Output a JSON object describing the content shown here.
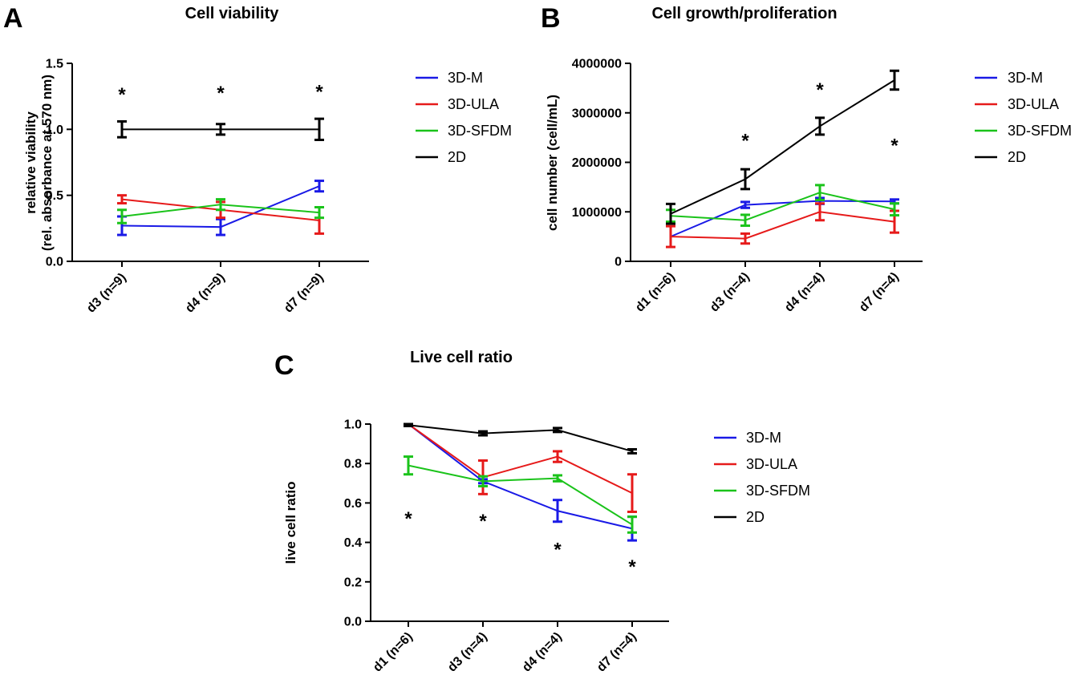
{
  "chart_data": [
    {
      "type": "line",
      "panel": "A",
      "title": "Cell viability",
      "xlabel": "",
      "ylabel": [
        "relative viability",
        "(rel. absorbance at 570 nm)"
      ],
      "categories": [
        "d3 (n=9)",
        "d4 (n=9)",
        "d7 (n=9)"
      ],
      "ylim": [
        0,
        1.5
      ],
      "yticks": [
        "0.0",
        "0.5",
        "1.0",
        "1.5"
      ],
      "ytick_values": [
        0,
        0.5,
        1.0,
        1.5
      ],
      "legend_position": "right",
      "series": [
        {
          "name": "3D-M",
          "color": "#1a1ae6",
          "values": [
            0.27,
            0.26,
            0.57
          ],
          "errors": [
            0.07,
            0.06,
            0.04
          ]
        },
        {
          "name": "3D-ULA",
          "color": "#e61a1a",
          "values": [
            0.47,
            0.39,
            0.31
          ],
          "errors": [
            0.03,
            0.06,
            0.1
          ]
        },
        {
          "name": "3D-SFDM",
          "color": "#1ac31a",
          "values": [
            0.34,
            0.43,
            0.37
          ],
          "errors": [
            0.05,
            0.04,
            0.04
          ]
        },
        {
          "name": "2D",
          "color": "#000000",
          "values": [
            1.0,
            1.0,
            1.0
          ],
          "errors": [
            0.06,
            0.04,
            0.08
          ]
        }
      ],
      "annotations": [
        {
          "text": "*",
          "category": 0,
          "y": 1.27
        },
        {
          "text": "*",
          "category": 1,
          "y": 1.28
        },
        {
          "text": "*",
          "category": 2,
          "y": 1.29
        }
      ]
    },
    {
      "type": "line",
      "panel": "B",
      "title": "Cell growth/proliferation",
      "xlabel": "",
      "ylabel": [
        "cell number (cell/mL)"
      ],
      "categories": [
        "d1 (n=6)",
        "d3 (n=4)",
        "d4 (n=4)",
        "d7 (n=4)"
      ],
      "ylim": [
        0,
        4000000
      ],
      "yticks": [
        "0",
        "1000000",
        "2000000",
        "3000000",
        "4000000"
      ],
      "ytick_values": [
        0,
        1000000,
        2000000,
        3000000,
        4000000
      ],
      "legend_position": "right",
      "series": [
        {
          "name": "3D-M",
          "color": "#1a1ae6",
          "values": [
            500000,
            1140000,
            1220000,
            1210000
          ],
          "errors": [
            0,
            60000,
            60000,
            40000
          ]
        },
        {
          "name": "3D-ULA",
          "color": "#e61a1a",
          "values": [
            500000,
            460000,
            1000000,
            800000
          ],
          "errors": [
            210000,
            100000,
            170000,
            220000
          ]
        },
        {
          "name": "3D-SFDM",
          "color": "#1ac31a",
          "values": [
            920000,
            830000,
            1390000,
            1050000
          ],
          "errors": [
            120000,
            110000,
            150000,
            120000
          ]
        },
        {
          "name": "2D",
          "color": "#000000",
          "values": [
            960000,
            1660000,
            2730000,
            3660000
          ],
          "errors": [
            200000,
            200000,
            170000,
            190000
          ]
        }
      ],
      "annotations": [
        {
          "text": "*",
          "category": 1,
          "y": 2450000
        },
        {
          "text": "*",
          "category": 2,
          "y": 3480000
        },
        {
          "text": "*",
          "category": 3,
          "y": 2360000
        }
      ]
    },
    {
      "type": "line",
      "panel": "C",
      "title": "Live cell ratio",
      "xlabel": "",
      "ylabel": [
        "live cell ratio"
      ],
      "categories": [
        "d1 (n=6)",
        "d3 (n=4)",
        "d4 (n=4)",
        "d7 (n=4)"
      ],
      "ylim": [
        0,
        1.0
      ],
      "yticks": [
        "0.0",
        "0.2",
        "0.4",
        "0.6",
        "0.8",
        "1.0"
      ],
      "ytick_values": [
        0,
        0.2,
        0.4,
        0.6,
        0.8,
        1.0
      ],
      "legend_position": "right",
      "series": [
        {
          "name": "3D-M",
          "color": "#1a1ae6",
          "values": [
            1.0,
            0.71,
            0.56,
            0.47
          ],
          "errors": [
            0,
            0.01,
            0.055,
            0.06
          ]
        },
        {
          "name": "3D-ULA",
          "color": "#e61a1a",
          "values": [
            1.0,
            0.73,
            0.835,
            0.65
          ],
          "errors": [
            0,
            0.085,
            0.027,
            0.095
          ]
        },
        {
          "name": "3D-SFDM",
          "color": "#1ac31a",
          "values": [
            0.79,
            0.71,
            0.725,
            0.49
          ],
          "errors": [
            0.045,
            0.025,
            0.015,
            0.04
          ]
        },
        {
          "name": "2D",
          "color": "#000000",
          "values": [
            0.995,
            0.953,
            0.97,
            0.862
          ],
          "errors": [
            0.005,
            0.01,
            0.01,
            0.01
          ]
        }
      ],
      "annotations": [
        {
          "text": "*",
          "category": 0,
          "y": 0.525
        },
        {
          "text": "*",
          "category": 1,
          "y": 0.512
        },
        {
          "text": "*",
          "category": 2,
          "y": 0.368
        },
        {
          "text": "*",
          "category": 3,
          "y": 0.28
        }
      ]
    }
  ]
}
